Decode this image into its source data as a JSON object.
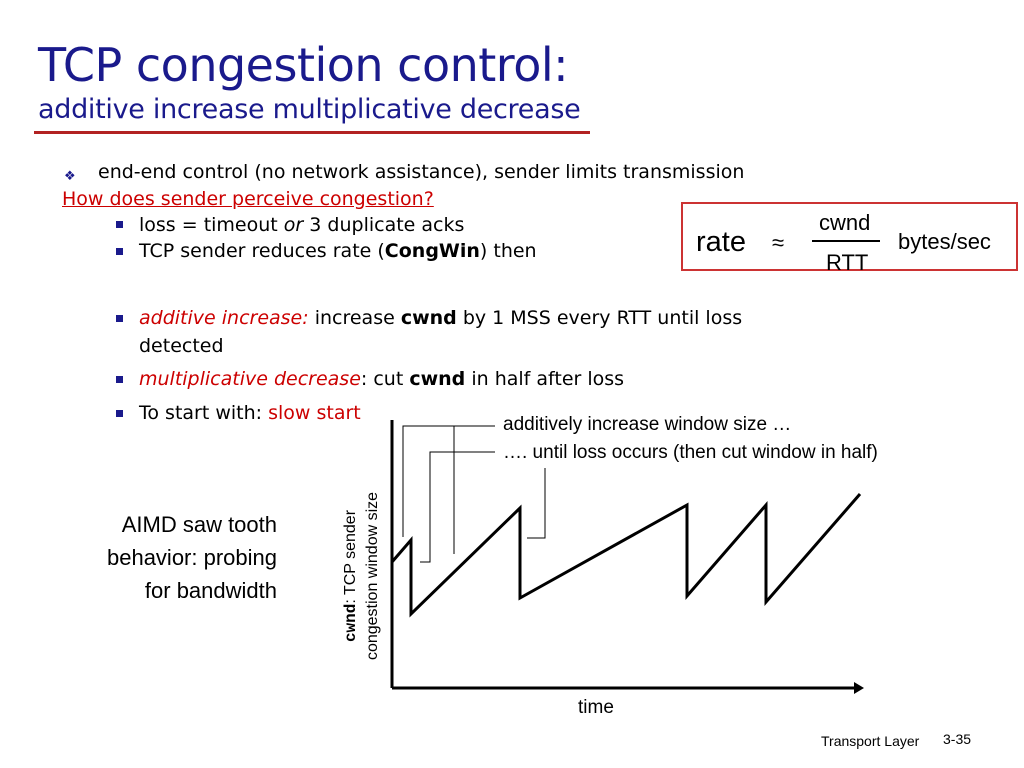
{
  "slide": {
    "title": "TCP congestion control:",
    "subtitle": "additive increase multiplicative decrease",
    "bullet1": "end-end control (no network assistance), sender limits transmission",
    "question": "How does  sender perceive congestion?",
    "sub1": {
      "a": "loss = timeout ",
      "b": "or",
      "c": " 3 duplicate acks"
    },
    "sub2": {
      "a": "TCP sender reduces rate (",
      "b": "CongWin",
      "c": ") then"
    },
    "ai": {
      "label": "additive increase:",
      "t1": " increase  ",
      "bold": "cwnd",
      "t2": " by 1 MSS every RTT until loss",
      "t3": "detected"
    },
    "md": {
      "label": "multiplicative decrease",
      "colon": ":",
      "t1": " cut ",
      "bold": "cwnd",
      "t2": " in half after loss"
    },
    "start": {
      "t1": "To start with: ",
      "red": "slow start"
    }
  },
  "formula": {
    "rate": "rate",
    "approx": "≈",
    "numerator": "cwnd",
    "denominator": "RTT",
    "unit": "bytes/sec"
  },
  "diagram": {
    "annotation1": "additively increase window size …",
    "annotation2": "…. until loss occurs (then cut window in half)",
    "ylabel_mono": "cwnd",
    "ylabel_rest": ": TCP sender",
    "ylabel_line2": "congestion window size",
    "xlabel": "time",
    "side_caption": [
      "AIMD saw tooth",
      "behavior: probing",
      "for bandwidth"
    ]
  },
  "footer": {
    "label": "Transport Layer",
    "page": "3-35"
  }
}
